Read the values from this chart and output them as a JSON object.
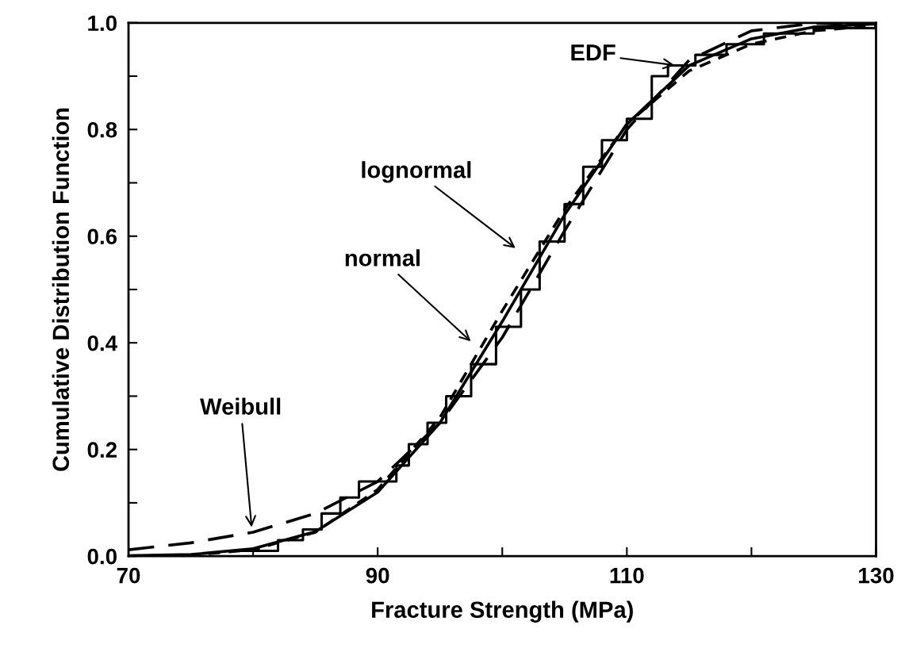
{
  "chart_data": {
    "type": "line",
    "xlabel": "Fracture Strength (MPa)",
    "ylabel": "Cumulative Distribution Function",
    "xlim": [
      70,
      130
    ],
    "ylim": [
      0,
      1.0
    ],
    "xticks": [
      70,
      {
        "value": 80,
        "label": null
      },
      90,
      {
        "value": 100,
        "label": null
      },
      110,
      {
        "value": 120,
        "label": null
      },
      130
    ],
    "yticks": [
      {
        "value": 0,
        "label": "0.0"
      },
      {
        "value": 0.1,
        "label": null
      },
      0.2,
      {
        "value": 0.3,
        "label": null
      },
      0.4,
      {
        "value": 0.5,
        "label": null
      },
      0.6,
      {
        "value": 0.7,
        "label": null
      },
      0.8,
      {
        "value": 0.9,
        "label": null
      },
      {
        "value": 1.0,
        "label": "1.0"
      }
    ],
    "grid": false,
    "legend": false,
    "series": [
      {
        "type": "step",
        "color": "#000000",
        "line_style": "solid",
        "x": [
          78,
          82,
          84,
          85.5,
          87,
          88.5,
          91.5,
          92.5,
          94,
          95.5,
          97.5,
          99.5,
          101.5,
          103,
          105,
          106.5,
          108,
          110,
          112,
          113.3,
          115.5,
          118,
          121,
          125,
          130
        ],
        "values": [
          0.01,
          0.03,
          0.05,
          0.08,
          0.11,
          0.14,
          0.17,
          0.21,
          0.25,
          0.3,
          0.36,
          0.43,
          0.5,
          0.59,
          0.66,
          0.73,
          0.78,
          0.82,
          0.9,
          0.92,
          0.94,
          0.96,
          0.98,
          0.99,
          1.0
        ]
      },
      {
        "type": "line",
        "color": "#000000",
        "line_style": "solid",
        "x": [
          70,
          75,
          80,
          85,
          90,
          95,
          100,
          105,
          110,
          115,
          120,
          125,
          130
        ],
        "values": [
          0.001,
          0.003,
          0.014,
          0.046,
          0.12,
          0.25,
          0.44,
          0.64,
          0.81,
          0.92,
          0.97,
          0.992,
          0.998
        ]
      },
      {
        "type": "line",
        "color": "#000000",
        "line_style": "dotted",
        "x": [
          70,
          75,
          80,
          85,
          90,
          95,
          100,
          105,
          110,
          115,
          120,
          125,
          130
        ],
        "values": [
          0.0,
          0.002,
          0.012,
          0.045,
          0.125,
          0.26,
          0.46,
          0.65,
          0.81,
          0.91,
          0.96,
          0.985,
          0.995
        ]
      },
      {
        "type": "line",
        "color": "#000000",
        "line_style": "dashed",
        "x": [
          70,
          75,
          80,
          85,
          90,
          95,
          100,
          105,
          110,
          115,
          120,
          125,
          130
        ],
        "values": [
          0.012,
          0.025,
          0.045,
          0.08,
          0.14,
          0.25,
          0.41,
          0.61,
          0.8,
          0.93,
          0.985,
          0.999,
          1.0
        ]
      }
    ],
    "annotations": [
      {
        "text": "EDF",
        "x": 114,
        "y": 0.92
      },
      "lognormal",
      "normal",
      {
        "text": "Weibull",
        "x": 79.9,
        "y": 0.05
      }
    ]
  }
}
